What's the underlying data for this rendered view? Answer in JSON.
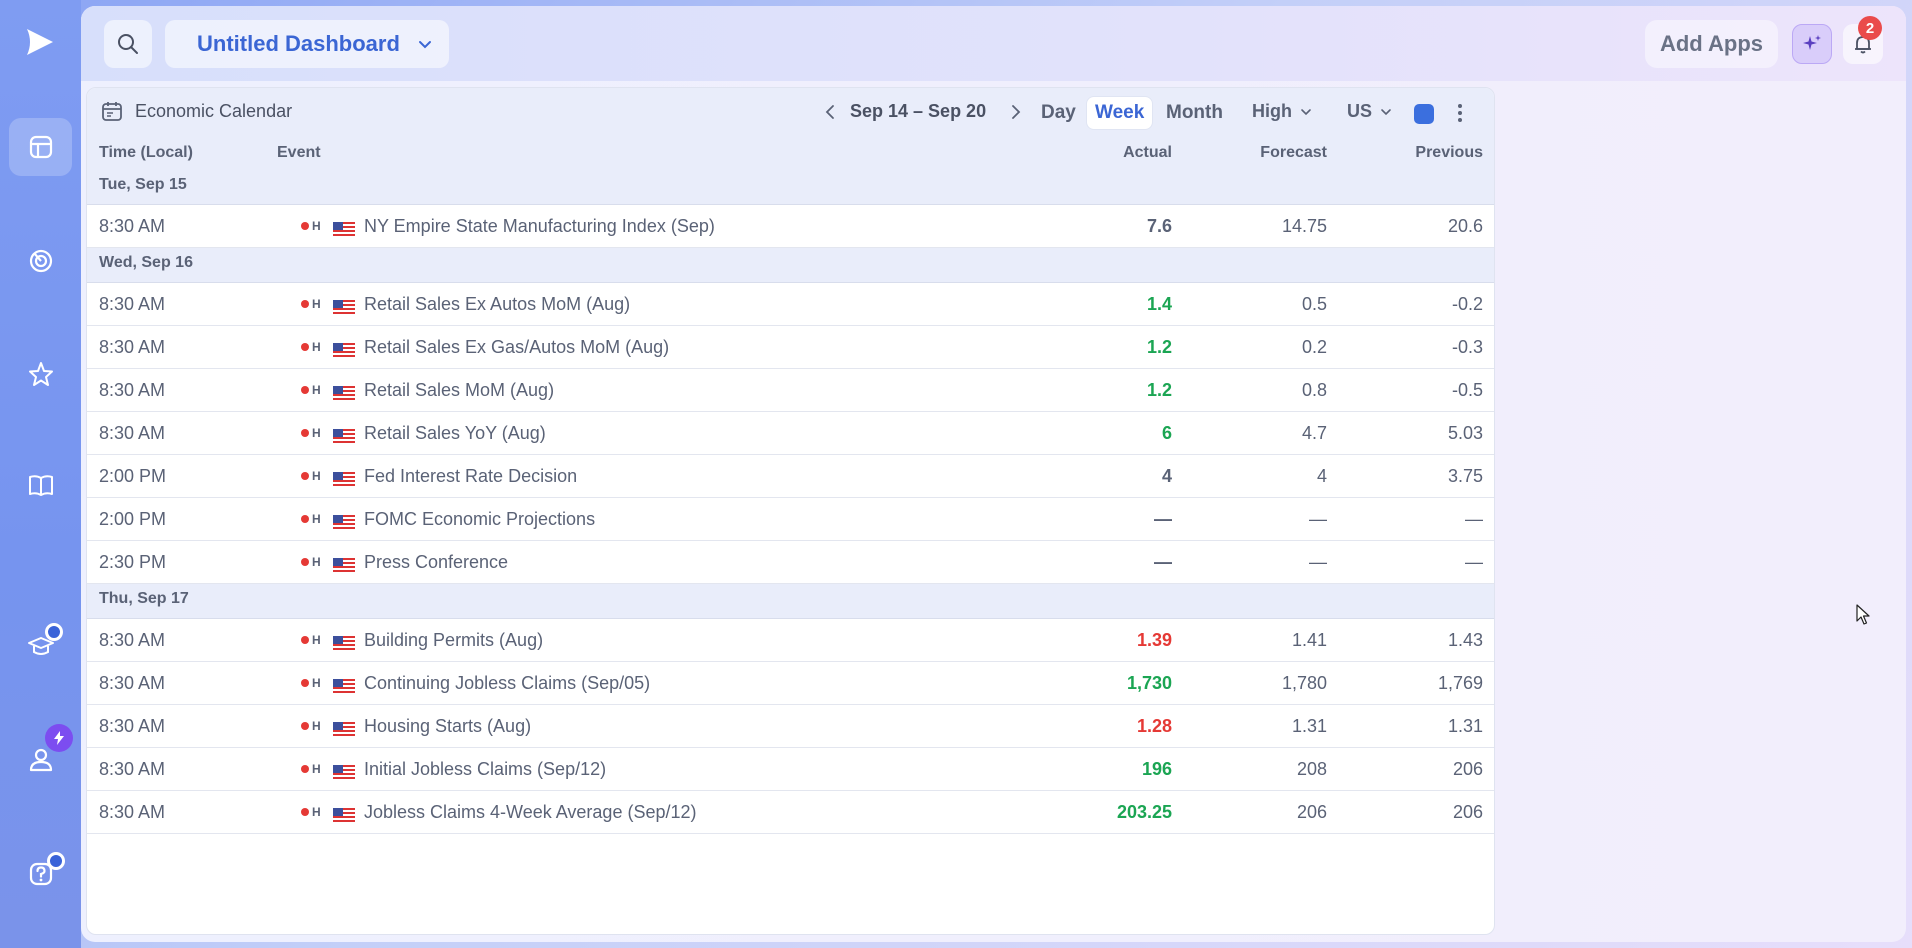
{
  "topbar": {
    "dashboard_name": "Untitled Dashboard",
    "add_apps_label": "Add Apps",
    "notification_count": "2"
  },
  "calendar": {
    "title": "Economic Calendar",
    "date_range": "Sep 14 – Sep 20",
    "views": [
      "Day",
      "Week",
      "Month"
    ],
    "active_view": "Week",
    "importance_filter": "High",
    "country_filter": "US",
    "columns": {
      "time": "Time (Local)",
      "event": "Event",
      "actual": "Actual",
      "forecast": "Forecast",
      "previous": "Previous"
    },
    "days": [
      {
        "label": "Tue, Sep 15",
        "events": [
          {
            "time": "8:30 AM",
            "importance": "H",
            "name": "NY Empire State Manufacturing Index (Sep)",
            "actual": "7.6",
            "actual_status": "neutral",
            "forecast": "14.75",
            "previous": "20.6"
          }
        ]
      },
      {
        "label": "Wed, Sep 16",
        "events": [
          {
            "time": "8:30 AM",
            "importance": "H",
            "name": "Retail Sales Ex Autos MoM (Aug)",
            "actual": "1.4",
            "actual_status": "green",
            "forecast": "0.5",
            "previous": "-0.2"
          },
          {
            "time": "8:30 AM",
            "importance": "H",
            "name": "Retail Sales Ex Gas/Autos MoM (Aug)",
            "actual": "1.2",
            "actual_status": "green",
            "forecast": "0.2",
            "previous": "-0.3"
          },
          {
            "time": "8:30 AM",
            "importance": "H",
            "name": "Retail Sales MoM (Aug)",
            "actual": "1.2",
            "actual_status": "green",
            "forecast": "0.8",
            "previous": "-0.5"
          },
          {
            "time": "8:30 AM",
            "importance": "H",
            "name": "Retail Sales YoY (Aug)",
            "actual": "6",
            "actual_status": "green",
            "forecast": "4.7",
            "previous": "5.03"
          },
          {
            "time": "2:00 PM",
            "importance": "H",
            "name": "Fed Interest Rate Decision",
            "actual": "4",
            "actual_status": "neutral",
            "forecast": "4",
            "previous": "3.75"
          },
          {
            "time": "2:00 PM",
            "importance": "H",
            "name": "FOMC Economic Projections",
            "actual": "—",
            "actual_status": "neutral",
            "forecast": "—",
            "previous": "—"
          },
          {
            "time": "2:30 PM",
            "importance": "H",
            "name": "Press Conference",
            "actual": "—",
            "actual_status": "neutral",
            "forecast": "—",
            "previous": "—"
          }
        ]
      },
      {
        "label": "Thu, Sep 17",
        "events": [
          {
            "time": "8:30 AM",
            "importance": "H",
            "name": "Building Permits (Aug)",
            "actual": "1.39",
            "actual_status": "red",
            "forecast": "1.41",
            "previous": "1.43"
          },
          {
            "time": "8:30 AM",
            "importance": "H",
            "name": "Continuing Jobless Claims (Sep/05)",
            "actual": "1,730",
            "actual_status": "green",
            "forecast": "1,780",
            "previous": "1,769"
          },
          {
            "time": "8:30 AM",
            "importance": "H",
            "name": "Housing Starts (Aug)",
            "actual": "1.28",
            "actual_status": "red",
            "forecast": "1.31",
            "previous": "1.31"
          },
          {
            "time": "8:30 AM",
            "importance": "H",
            "name": "Initial Jobless Claims (Sep/12)",
            "actual": "196",
            "actual_status": "green",
            "forecast": "208",
            "previous": "206"
          },
          {
            "time": "8:30 AM",
            "importance": "H",
            "name": "Jobless Claims 4-Week Average (Sep/12)",
            "actual": "203.25",
            "actual_status": "green",
            "forecast": "206",
            "previous": "206"
          }
        ]
      }
    ]
  },
  "colors": {
    "accent": "#3b66d4",
    "positive": "#1ba553",
    "negative": "#e53935",
    "notification": "#ea4b4b"
  }
}
